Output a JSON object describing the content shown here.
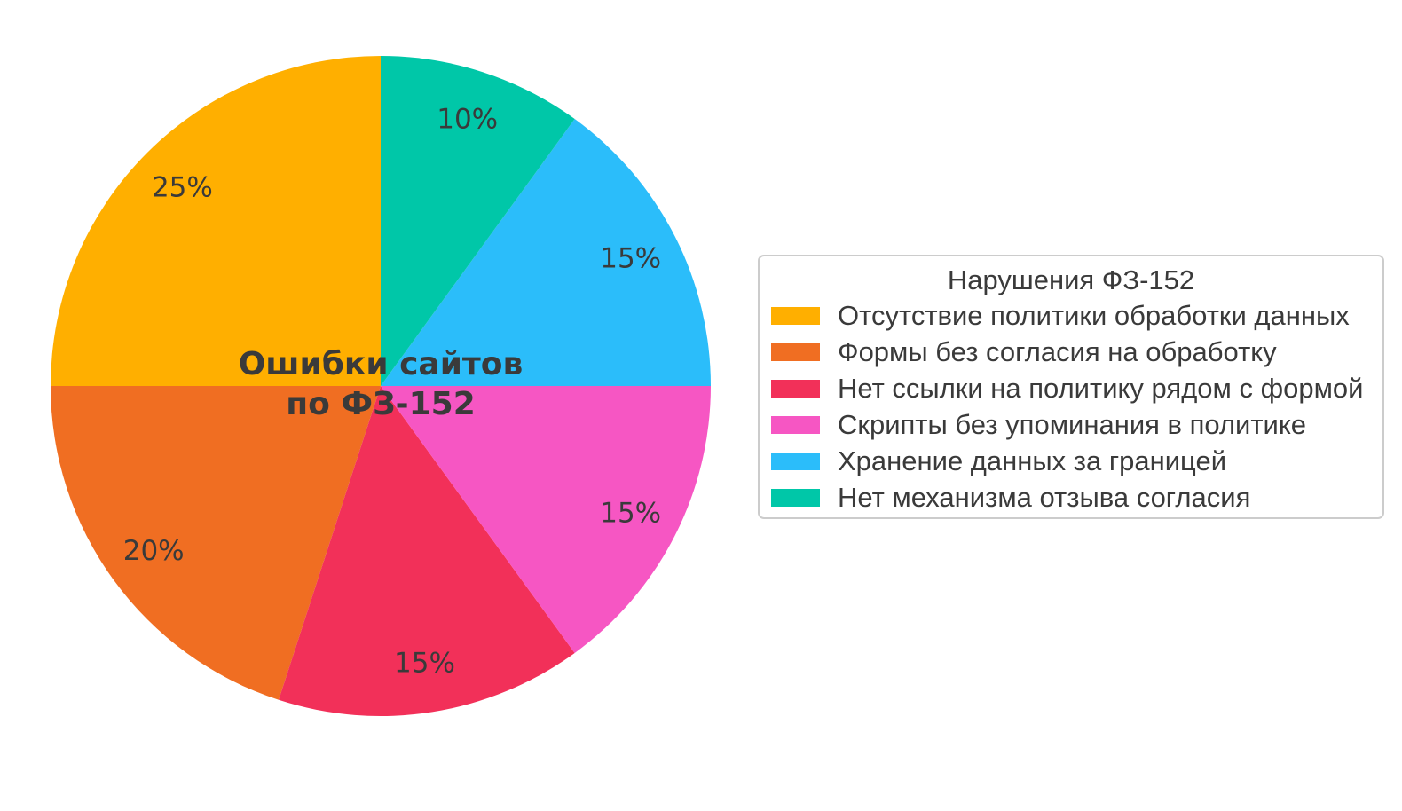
{
  "chart_data": {
    "type": "pie",
    "title": "Ошибки сайтов по ФЗ-152",
    "title_lines": [
      "Ошибки сайтов",
      "по ФЗ-152"
    ],
    "legend_title": "Нарушения ФЗ-152",
    "labels": [
      "Отсутствие политики обработки данных",
      "Формы без согласия на обработку",
      "Нет ссылки на политику рядом с формой",
      "Скрипты без упоминания в политике",
      "Хранение данных за границей",
      "Нет механизма отзыва согласия"
    ],
    "values": [
      25,
      20,
      15,
      15,
      15,
      10
    ],
    "pct_labels": [
      "25%",
      "20%",
      "15%",
      "15%",
      "15%",
      "10%"
    ],
    "colors": [
      "#FFAF00",
      "#F06E22",
      "#F23059",
      "#F656C3",
      "#2BBDFA",
      "#00C7A8"
    ],
    "start_angle_deg": 90,
    "direction": "counterclockwise",
    "label_distance": 0.85,
    "legend_position": "right",
    "text_color": "#3A3A3A",
    "background": "#FFFFFF"
  }
}
